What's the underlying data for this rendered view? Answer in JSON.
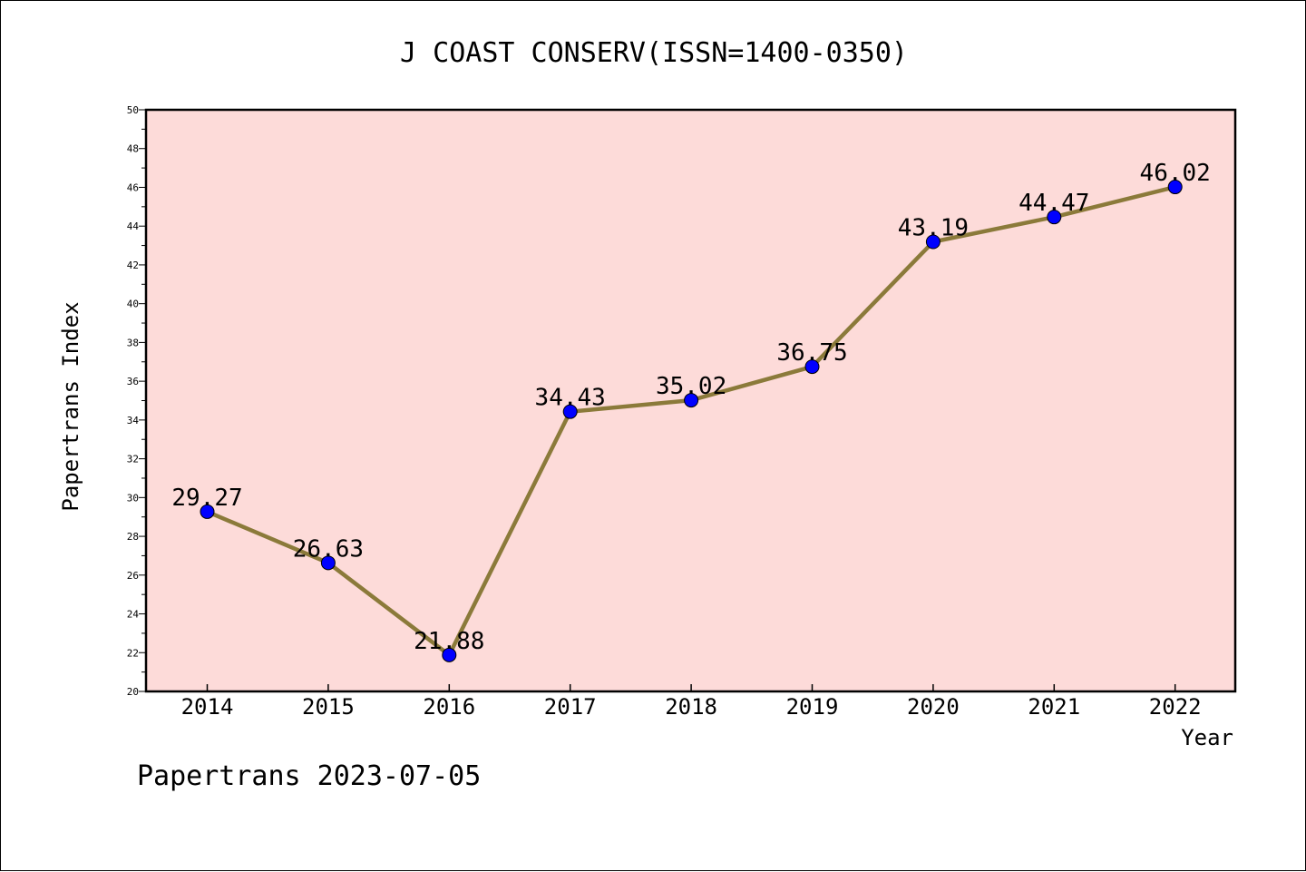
{
  "chart_data": {
    "type": "line",
    "title": "J COAST CONSERV(ISSN=1400-0350)",
    "xlabel": "Year",
    "ylabel": "Papertrans Index",
    "categories": [
      "2014",
      "2015",
      "2016",
      "2017",
      "2018",
      "2019",
      "2020",
      "2021",
      "2022"
    ],
    "series": [
      {
        "values": [
          29.27,
          26.63,
          21.88,
          34.43,
          35.02,
          36.75,
          43.19,
          44.47,
          46.02
        ],
        "labels": [
          "29.27",
          "26.63",
          "21.88",
          "34.43",
          "35.02",
          "36.75",
          "43.19",
          "44.47",
          "46.02"
        ]
      }
    ],
    "ylim": [
      20,
      50
    ],
    "ytick_step": 2,
    "yticks": [
      "20",
      "22",
      "24",
      "26",
      "28",
      "30",
      "32",
      "34",
      "36",
      "38",
      "40",
      "42",
      "44",
      "46",
      "48",
      "50"
    ],
    "grid": false,
    "legend": "none",
    "footer": "Papertrans 2023-07-05",
    "colors": {
      "plot_background": "#fddbd9",
      "line": "#8b7a3a",
      "marker": "#0000ff",
      "axis": "#000000"
    }
  }
}
